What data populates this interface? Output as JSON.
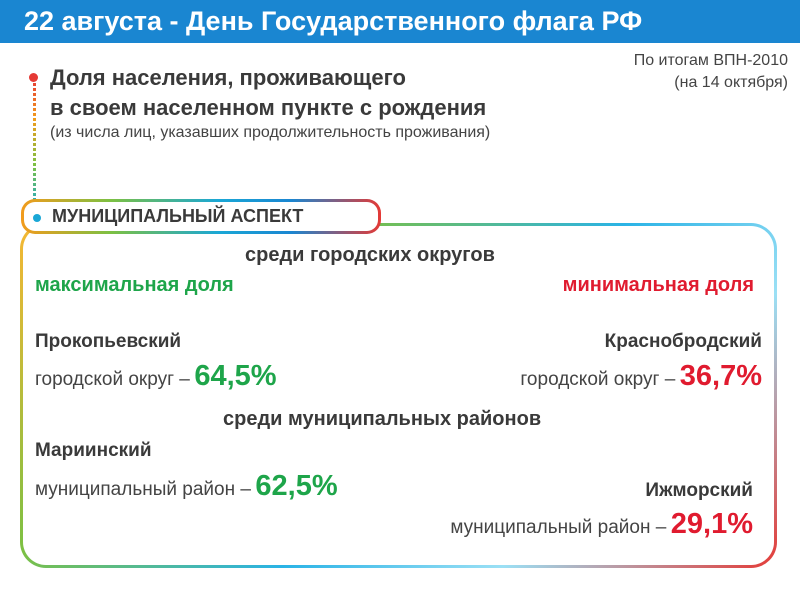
{
  "header": {
    "title": "22 августа - День Государственного флага РФ"
  },
  "source": {
    "line1": "По итогам ВПН-2010",
    "line2": "(на 14 октября)"
  },
  "heading": {
    "line1": "Доля населения, проживающего",
    "line2": "в своем населенном пункте с рождения",
    "subtitle": "(из числа лиц, указавших продолжительность проживания)"
  },
  "aspect": {
    "label": "МУНИЦИПАЛЬНЫЙ АСПЕКТ"
  },
  "urban": {
    "section_title": "среди городских округов",
    "max_label": "максимальная доля",
    "min_label": "минимальная доля",
    "max": {
      "name": "Прокопьевский",
      "type": "городской округ –",
      "value": "64,5%"
    },
    "min": {
      "name": "Краснобродский",
      "type": "городской округ –",
      "value": "36,7%"
    }
  },
  "districts": {
    "section_title": "среди муниципальных районов",
    "max": {
      "name": "Мариинский",
      "type": "муниципальный район –",
      "value": "62,5%"
    },
    "min": {
      "name": "Ижморский",
      "type": "муниципальный район –",
      "value": "29,1%"
    }
  },
  "colors": {
    "banner": "#1a86d1",
    "max": "#1ea54a",
    "min": "#e01b2f"
  }
}
